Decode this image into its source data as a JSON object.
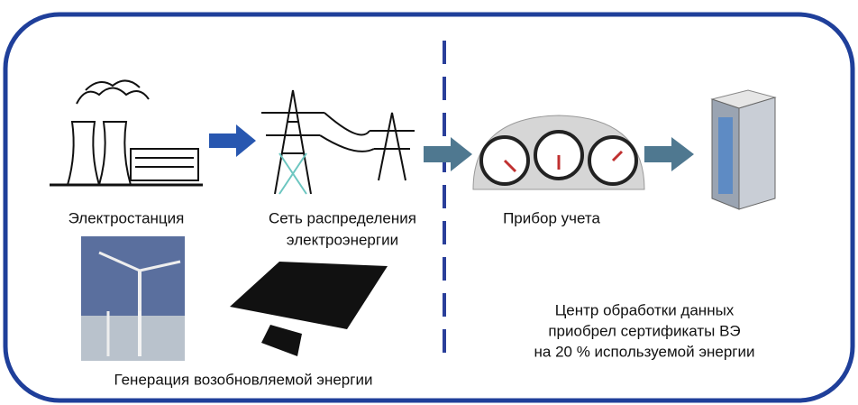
{
  "labels": {
    "power_plant": "Электростанция",
    "grid": [
      "Сеть распределения",
      "электроэнергии"
    ],
    "meter": "Прибор учета",
    "renewable": "Генерация возобновляемой энергии",
    "data_center": [
      "Центр обработки данных",
      "приобрел сертификаты ВЭ",
      "на 20 % используемой энергии"
    ]
  }
}
